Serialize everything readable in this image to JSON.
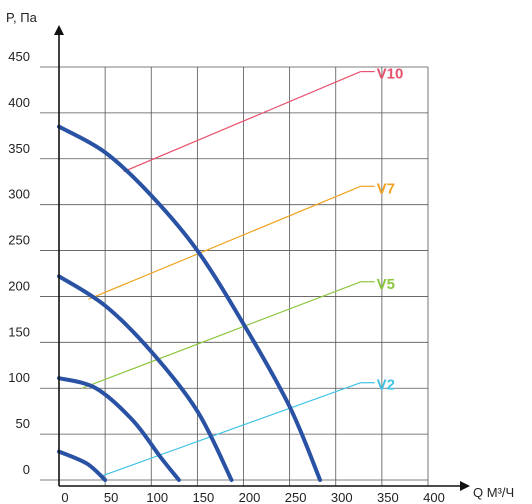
{
  "chart_data": {
    "type": "line",
    "xlabel": "Q М³/Ч",
    "ylabel": "P, Па",
    "xlim": [
      0,
      400
    ],
    "ylim": [
      0,
      450
    ],
    "x_ticks": [
      0,
      50,
      100,
      150,
      200,
      250,
      300,
      350,
      400
    ],
    "y_ticks": [
      0,
      50,
      100,
      150,
      200,
      250,
      300,
      350,
      400,
      450
    ],
    "grid": true,
    "fan_curves": [
      {
        "points": [
          [
            0,
            385
          ],
          [
            50,
            357
          ],
          [
            100,
            310
          ],
          [
            150,
            250
          ],
          [
            200,
            170
          ],
          [
            250,
            80
          ],
          [
            283,
            0
          ]
        ]
      },
      {
        "points": [
          [
            0,
            222
          ],
          [
            50,
            190
          ],
          [
            100,
            140
          ],
          [
            150,
            75
          ],
          [
            187,
            0
          ]
        ]
      },
      {
        "points": [
          [
            0,
            111
          ],
          [
            40,
            100
          ],
          [
            80,
            65
          ],
          [
            110,
            25
          ],
          [
            130,
            0
          ]
        ]
      },
      {
        "points": [
          [
            0,
            31
          ],
          [
            30,
            18
          ],
          [
            50,
            0
          ]
        ]
      }
    ],
    "series": [
      {
        "name": "V10",
        "color": "#e8526e",
        "x": [
          70,
          327
        ],
        "values": [
          336,
          445
        ]
      },
      {
        "name": "V7",
        "color": "#f0a320",
        "x": [
          32,
          327
        ],
        "values": [
          197,
          320
        ]
      },
      {
        "name": "V5",
        "color": "#8dc63f",
        "x": [
          25,
          327
        ],
        "values": [
          100,
          216
        ]
      },
      {
        "name": "V2",
        "color": "#41c3e6",
        "x": [
          48,
          327
        ],
        "values": [
          5,
          106
        ]
      }
    ],
    "curve_color": "#2a52a4"
  }
}
